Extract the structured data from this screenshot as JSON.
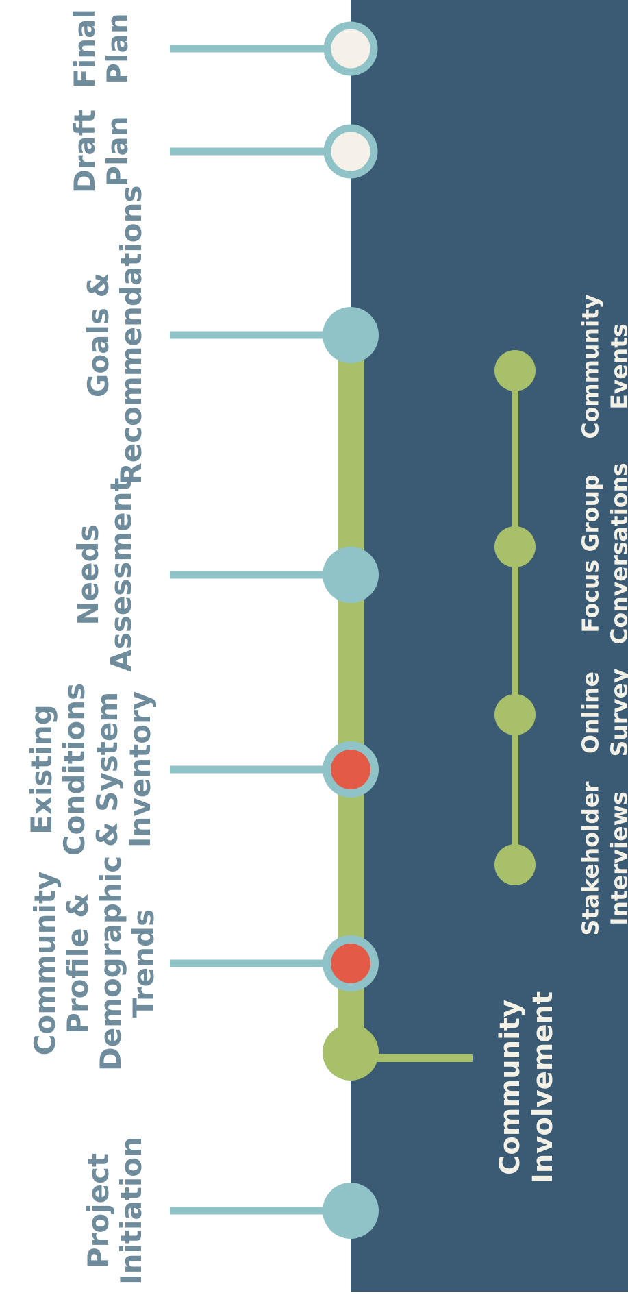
{
  "colors": {
    "background": "#ffffff",
    "panel": "#3b5a74",
    "connector": "#8fc3c8",
    "node_teal": "#8fc3c8",
    "node_red": "#e35a47",
    "node_open_fill": "#f5f0e8",
    "involvement_green": "#a8c06a",
    "phase_text": "#6f8c9c",
    "panel_text": "#f3f0e6"
  },
  "phases": [
    {
      "lines": [
        "Project",
        "Initiation"
      ],
      "status": "complete"
    },
    {
      "lines": [
        "Community",
        "Profile &",
        "Demographic",
        "Trends"
      ],
      "status": "in-progress"
    },
    {
      "lines": [
        "Existing",
        "Conditions",
        "& System",
        "Inventory"
      ],
      "status": "in-progress"
    },
    {
      "lines": [
        "Needs",
        "Assessment"
      ],
      "status": "complete"
    },
    {
      "lines": [
        "Goals &",
        "Recommendations"
      ],
      "status": "complete"
    },
    {
      "lines": [
        "Draft",
        "Plan"
      ],
      "status": "upcoming"
    },
    {
      "lines": [
        "Final",
        "Plan"
      ],
      "status": "upcoming"
    }
  ],
  "community_involvement": {
    "label_lines": [
      "Community",
      "Involvement"
    ],
    "activities": [
      {
        "lines": [
          "Stakeholder",
          "Interviews"
        ]
      },
      {
        "lines": [
          "Online",
          "Survey"
        ]
      },
      {
        "lines": [
          "Focus Group",
          "Conversations"
        ]
      },
      {
        "lines": [
          "Community",
          "Events"
        ]
      }
    ]
  }
}
